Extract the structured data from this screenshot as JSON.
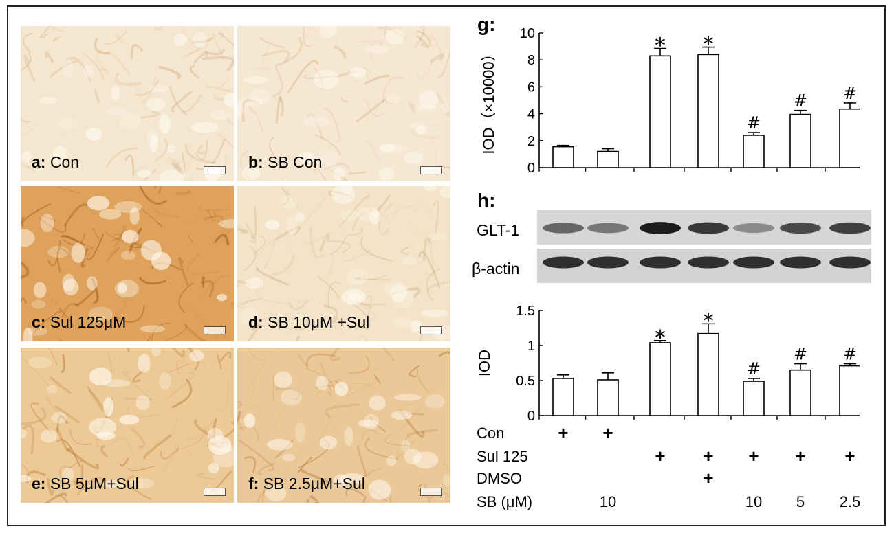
{
  "micrographs": [
    {
      "letter": "a:",
      "text": "Con",
      "tone": "#f4e6cf"
    },
    {
      "letter": "b:",
      "text": "SB Con",
      "tone": "#f5e7d1"
    },
    {
      "letter": "c:",
      "text": "Sul 125μM",
      "tone": "#dfa25c"
    },
    {
      "letter": "d:",
      "text": "SB 10μM +Sul",
      "tone": "#f3e3c8"
    },
    {
      "letter": "e:",
      "text": "SB 5μM+Sul",
      "tone": "#ecc995"
    },
    {
      "letter": "f:",
      "text": "SB 2.5μM+Sul",
      "tone": "#ebc897"
    }
  ],
  "colors": {
    "bar_fill": "#ffffff",
    "stroke": "#000000",
    "frame": "#222222"
  },
  "panel_g_label": "g:",
  "panel_h_label": "h:",
  "blot": {
    "band1": "GLT-1",
    "band2": "β-actin",
    "glt1_intensity": [
      0.55,
      0.45,
      0.95,
      0.8,
      0.35,
      0.7,
      0.75
    ],
    "actin_intensity": [
      0.85,
      0.85,
      0.85,
      0.85,
      0.85,
      0.85,
      0.85
    ]
  },
  "chart_data": [
    {
      "type": "bar",
      "ylabel": "IOD（×10000）",
      "ylim": [
        0,
        10
      ],
      "yticks": [
        "0",
        "2",
        "4",
        "6",
        "8",
        "10"
      ],
      "values": [
        1.55,
        1.2,
        8.3,
        8.4,
        2.4,
        3.95,
        4.35
      ],
      "errors": [
        0.1,
        0.2,
        0.55,
        0.55,
        0.2,
        0.3,
        0.45
      ],
      "markers": [
        "",
        "",
        "*",
        "*",
        "#",
        "#",
        "#"
      ]
    },
    {
      "type": "bar",
      "ylabel": "IOD",
      "ylim": [
        0,
        1.5
      ],
      "yticks": [
        "0",
        "0.5",
        "1",
        "1.5"
      ],
      "values": [
        0.53,
        0.51,
        1.04,
        1.17,
        0.49,
        0.65,
        0.71
      ],
      "errors": [
        0.05,
        0.1,
        0.03,
        0.14,
        0.04,
        0.09,
        0.03
      ],
      "markers": [
        "",
        "",
        "*",
        "*",
        "#",
        "#",
        "#"
      ]
    }
  ],
  "conditions": {
    "rows": [
      {
        "label": "Con",
        "cells": [
          "+",
          "+",
          "",
          "",
          "",
          "",
          ""
        ]
      },
      {
        "label": "Sul 125",
        "cells": [
          "",
          "",
          "+",
          "+",
          "+",
          "+",
          "+"
        ]
      },
      {
        "label": "DMSO",
        "cells": [
          "",
          "",
          "",
          "+",
          "",
          "",
          ""
        ]
      },
      {
        "label": "SB (μM)",
        "cells": [
          "",
          "10",
          "",
          "",
          "10",
          "5",
          "2.5"
        ]
      }
    ]
  }
}
